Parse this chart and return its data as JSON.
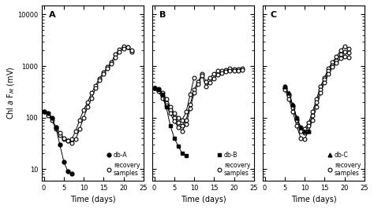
{
  "ylabel": "Chl $a$ F$_M$ (mV)",
  "xlabel": "Time (days)",
  "ylim": [
    6,
    15000
  ],
  "xlim": [
    -0.5,
    25
  ],
  "xticks": [
    0,
    5,
    10,
    15,
    20,
    25
  ],
  "db_A_x": [
    0,
    1,
    2,
    3,
    4,
    5,
    6,
    7
  ],
  "db_A_y": [
    130,
    120,
    100,
    65,
    30,
    14,
    9,
    8
  ],
  "rec_A1_x": [
    0,
    1,
    2,
    3,
    4,
    5,
    6,
    7,
    8,
    9,
    10,
    11,
    12,
    13,
    14,
    15,
    16,
    17,
    18,
    19,
    20,
    21,
    22
  ],
  "rec_A1_y": [
    130,
    110,
    90,
    60,
    45,
    38,
    35,
    38,
    55,
    90,
    140,
    200,
    300,
    420,
    580,
    750,
    950,
    1200,
    1700,
    2100,
    2400,
    2300,
    1900
  ],
  "rec_A2_x": [
    3,
    4,
    5,
    6,
    7,
    8,
    9,
    10,
    11,
    12,
    13,
    14,
    15,
    16,
    17,
    18,
    19,
    20,
    21,
    22
  ],
  "rec_A2_y": [
    65,
    50,
    40,
    35,
    32,
    38,
    60,
    100,
    160,
    240,
    370,
    530,
    700,
    900,
    1100,
    1450,
    1900,
    2200,
    2350,
    2050
  ],
  "db_B_x": [
    0,
    1,
    2,
    3,
    4,
    5,
    6,
    7,
    8
  ],
  "db_B_y": [
    380,
    350,
    280,
    160,
    70,
    40,
    28,
    20,
    18
  ],
  "rec_B1_x": [
    0,
    1,
    2,
    3,
    4,
    5,
    6,
    7,
    8,
    9,
    10
  ],
  "rec_B1_y": [
    380,
    360,
    300,
    230,
    160,
    120,
    100,
    90,
    130,
    280,
    600
  ],
  "rec_B2_x": [
    0,
    1,
    2,
    3,
    4,
    5,
    6,
    7,
    8,
    9,
    10,
    11,
    12,
    13,
    14,
    15,
    16,
    17,
    18,
    19,
    20,
    21,
    22
  ],
  "rec_B2_y": [
    380,
    340,
    260,
    190,
    140,
    100,
    80,
    70,
    90,
    180,
    350,
    500,
    700,
    500,
    600,
    700,
    800,
    800,
    850,
    900,
    880,
    870,
    900
  ],
  "rec_B3_x": [
    0,
    1,
    2,
    3,
    4,
    5,
    6,
    7,
    8,
    9,
    10,
    11,
    12,
    13,
    14,
    15,
    16,
    17,
    18,
    19,
    20,
    21,
    22
  ],
  "rec_B3_y": [
    380,
    320,
    240,
    170,
    120,
    85,
    65,
    55,
    75,
    150,
    300,
    450,
    650,
    400,
    480,
    580,
    680,
    720,
    780,
    820,
    810,
    800,
    830
  ],
  "db_C_x": [
    5,
    6,
    7,
    8,
    9,
    10,
    11
  ],
  "db_C_y": [
    400,
    300,
    180,
    100,
    65,
    55,
    55
  ],
  "rec_C1_x": [
    5,
    6,
    7,
    8,
    9,
    10,
    11,
    12,
    13,
    14,
    15,
    16,
    17,
    18,
    19,
    20,
    21
  ],
  "rec_C1_y": [
    400,
    280,
    170,
    100,
    65,
    60,
    80,
    130,
    230,
    400,
    600,
    900,
    1200,
    1500,
    2000,
    2400,
    2200
  ],
  "rec_C2_x": [
    5,
    6,
    7,
    8,
    9,
    10,
    11,
    12,
    13,
    14,
    15,
    16,
    17,
    18,
    19,
    20,
    21
  ],
  "rec_C2_y": [
    380,
    260,
    155,
    90,
    55,
    50,
    70,
    110,
    200,
    350,
    550,
    800,
    1050,
    1300,
    1700,
    1900,
    1800
  ],
  "rec_C3_x": [
    5,
    6,
    7,
    8,
    9,
    10,
    11,
    12,
    13,
    14,
    15,
    16,
    17,
    18,
    19,
    20,
    21
  ],
  "rec_C3_y": [
    350,
    230,
    130,
    70,
    40,
    38,
    55,
    90,
    160,
    300,
    480,
    700,
    950,
    1150,
    1400,
    1500,
    1450
  ]
}
